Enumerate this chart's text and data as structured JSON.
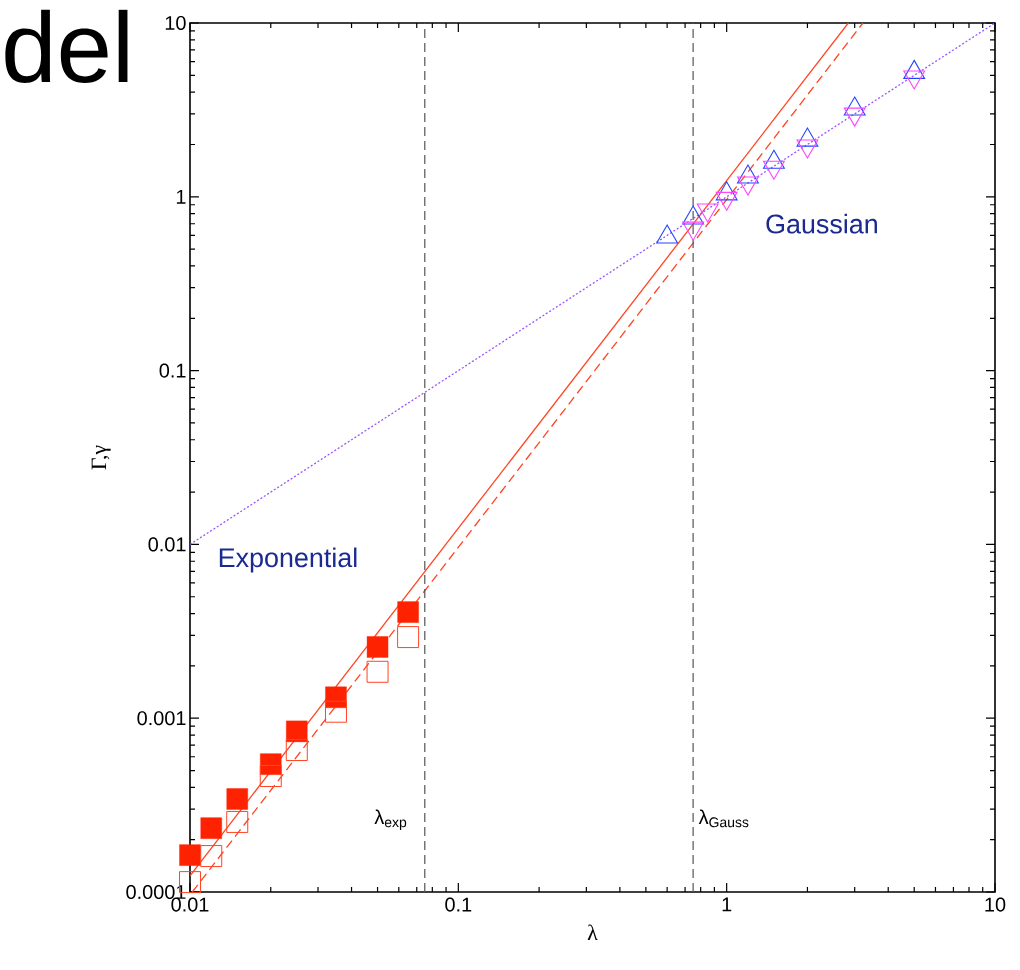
{
  "chart_data": {
    "type": "scatter",
    "xlabel": "λ",
    "ylabel": "Γ,γ",
    "log": "xy",
    "xlim": [
      0.01,
      10
    ],
    "ylim": [
      0.0001,
      10
    ],
    "xticks": [
      0.01,
      0.1,
      1,
      10
    ],
    "yticks": [
      0.0001,
      0.001,
      0.01,
      0.1,
      1,
      10
    ],
    "series": [
      {
        "marker": "square",
        "color": "#ff2200",
        "x": [
          0.01,
          0.012,
          0.015,
          0.02,
          0.025,
          0.035,
          0.05,
          0.065
        ],
        "values": [
          0.000163,
          0.000233,
          0.000343,
          0.000544,
          0.00084,
          0.00132,
          0.00257,
          0.00408
        ]
      },
      {
        "marker": "square_open",
        "color": "#ff4422",
        "x": [
          0.01,
          0.012,
          0.015,
          0.02,
          0.025,
          0.035,
          0.05,
          0.065
        ],
        "values": [
          0.000114,
          0.000161,
          0.000253,
          0.000465,
          0.000656,
          0.00109,
          0.00185,
          0.00293
        ]
      },
      {
        "marker": "triangle",
        "color": "#2244ff",
        "x": [
          0.6,
          0.75,
          1.0,
          1.2,
          1.5,
          2.0,
          3.0,
          5.0
        ],
        "values": [
          0.587,
          0.755,
          1.04,
          1.3,
          1.58,
          2.12,
          3.2,
          5.2
        ]
      },
      {
        "marker": "triangle_down",
        "color": "#ff44ff",
        "x": [
          0.75,
          0.85,
          1.0,
          1.2,
          1.5,
          2.0,
          3.0,
          5.0
        ],
        "values": [
          0.66,
          0.84,
          0.98,
          1.2,
          1.48,
          1.96,
          2.99,
          4.89
        ]
      },
      {
        "type": "line",
        "line_style": "solid",
        "color": "#ff4422",
        "x": [
          0.01,
          2.84
        ],
        "values": [
          0.000124,
          10
        ]
      },
      {
        "type": "line",
        "line_style": "dashed",
        "color": "#ff4422",
        "x": [
          0.0102,
          3.22
        ],
        "values": [
          0.0001,
          10
        ]
      },
      {
        "type": "line",
        "line_style": "dotted",
        "color": "#9955ff",
        "x": [
          0.01,
          10
        ],
        "values": [
          0.01,
          10
        ]
      }
    ],
    "ref_lines": [
      {
        "axis": "x",
        "value": 0.075,
        "label": "λ$_{exp}$",
        "color": "#555555",
        "line_style": "dashed"
      },
      {
        "axis": "x",
        "value": 0.75,
        "label": "λ$_{Gauss}$",
        "color": "#555555",
        "line_style": "dashed"
      }
    ],
    "annotations": [
      "Exponential",
      "Gaussian",
      "del"
    ]
  }
}
